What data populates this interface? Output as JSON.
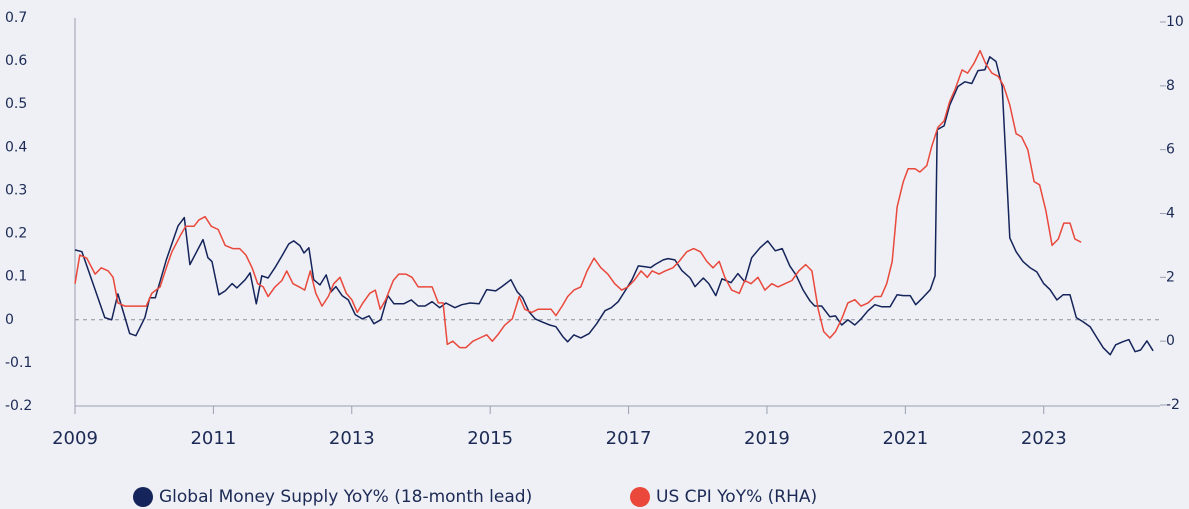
{
  "chart_data": {
    "type": "line",
    "xlim": [
      2009,
      2024.68
    ],
    "xticks": [
      2009,
      2011,
      2013,
      2015,
      2017,
      2019,
      2021,
      2023
    ],
    "ylim": [
      -0.2,
      0.7
    ],
    "yticks": [
      -0.2,
      -0.1,
      0,
      0.1,
      0.2,
      0.3,
      0.4,
      0.5,
      0.6,
      0.7
    ],
    "y2lim": [
      -2,
      10
    ],
    "y2ticks": [
      -2,
      0,
      2,
      4,
      6,
      8,
      10
    ],
    "zero_line": true,
    "legend": "bottom",
    "series": [
      {
        "name": "Global Money Supply YoY% (18-month lead)",
        "color": "#15245a",
        "axis": "y",
        "x": [
          2009.0,
          2009.1,
          2009.29,
          2009.43,
          2009.53,
          2009.62,
          2009.71,
          2009.79,
          2009.88,
          2010.01,
          2010.08,
          2010.16,
          2010.32,
          2010.49,
          2010.58,
          2010.66,
          2010.85,
          2010.92,
          2010.98,
          2011.08,
          2011.17,
          2011.27,
          2011.34,
          2011.46,
          2011.53,
          2011.62,
          2011.7,
          2011.79,
          2011.89,
          2011.99,
          2012.09,
          2012.16,
          2012.25,
          2012.31,
          2012.38,
          2012.45,
          2012.54,
          2012.63,
          2012.7,
          2012.77,
          2012.86,
          2012.95,
          2013.05,
          2013.15,
          2013.25,
          2013.32,
          2013.42,
          2013.52,
          2013.61,
          2013.75,
          2013.86,
          2013.96,
          2014.06,
          2014.16,
          2014.27,
          2014.36,
          2014.49,
          2014.59,
          2014.71,
          2014.84,
          2014.95,
          2015.08,
          2015.17,
          2015.3,
          2015.39,
          2015.47,
          2015.56,
          2015.65,
          2015.75,
          2015.86,
          2015.95,
          2016.05,
          2016.12,
          2016.21,
          2016.31,
          2016.43,
          2016.54,
          2016.66,
          2016.75,
          2016.85,
          2016.95,
          2017.05,
          2017.14,
          2017.24,
          2017.32,
          2017.38,
          2017.5,
          2017.57,
          2017.67,
          2017.77,
          2017.89,
          2017.96,
          2018.08,
          2018.16,
          2018.26,
          2018.35,
          2018.48,
          2018.58,
          2018.68,
          2018.78,
          2018.9,
          2019.01,
          2019.12,
          2019.22,
          2019.33,
          2019.42,
          2019.52,
          2019.62,
          2019.69,
          2019.79,
          2019.91,
          2019.99,
          2020.08,
          2020.17,
          2020.27,
          2020.36,
          2020.46,
          2020.56,
          2020.66,
          2020.78,
          2020.88,
          2020.97,
          2021.07,
          2021.15,
          2021.25,
          2021.36,
          2021.43,
          2021.46,
          2021.56,
          2021.64,
          2021.76,
          2021.86,
          2021.96,
          2022.05,
          2022.15,
          2022.22,
          2022.31,
          2022.4,
          2022.51,
          2022.6,
          2022.7,
          2022.8,
          2022.9,
          2023.0,
          2023.09,
          2023.19,
          2023.28,
          2023.38,
          2023.47,
          2023.57,
          2023.67,
          2023.77,
          2023.86,
          2023.96,
          2024.04,
          2024.14,
          2024.23,
          2024.32,
          2024.4,
          2024.49,
          2024.58
        ],
        "values": [
          0.162,
          0.158,
          0.07,
          0.005,
          0.0,
          0.06,
          0.012,
          -0.032,
          -0.037,
          0.005,
          0.051,
          0.051,
          0.139,
          0.218,
          0.237,
          0.128,
          0.186,
          0.144,
          0.135,
          0.058,
          0.067,
          0.084,
          0.074,
          0.093,
          0.109,
          0.037,
          0.102,
          0.097,
          0.121,
          0.148,
          0.176,
          0.183,
          0.172,
          0.155,
          0.167,
          0.093,
          0.081,
          0.104,
          0.065,
          0.077,
          0.056,
          0.046,
          0.012,
          0.002,
          0.009,
          -0.009,
          0.0,
          0.056,
          0.037,
          0.037,
          0.046,
          0.032,
          0.032,
          0.042,
          0.028,
          0.039,
          0.028,
          0.035,
          0.039,
          0.037,
          0.07,
          0.067,
          0.077,
          0.093,
          0.065,
          0.051,
          0.019,
          0.002,
          -0.005,
          -0.012,
          -0.016,
          -0.039,
          -0.051,
          -0.035,
          -0.042,
          -0.032,
          -0.009,
          0.021,
          0.028,
          0.042,
          0.067,
          0.093,
          0.125,
          0.123,
          0.121,
          0.128,
          0.139,
          0.142,
          0.139,
          0.114,
          0.097,
          0.077,
          0.097,
          0.084,
          0.056,
          0.095,
          0.086,
          0.107,
          0.088,
          0.144,
          0.167,
          0.183,
          0.16,
          0.165,
          0.125,
          0.104,
          0.07,
          0.044,
          0.032,
          0.032,
          0.007,
          0.009,
          -0.012,
          0.0,
          -0.012,
          0.002,
          0.021,
          0.035,
          0.03,
          0.03,
          0.058,
          0.056,
          0.056,
          0.035,
          0.051,
          0.07,
          0.102,
          0.441,
          0.45,
          0.497,
          0.541,
          0.552,
          0.548,
          0.578,
          0.58,
          0.61,
          0.599,
          0.541,
          0.19,
          0.158,
          0.135,
          0.121,
          0.111,
          0.084,
          0.07,
          0.046,
          0.058,
          0.058,
          0.005,
          -0.005,
          -0.016,
          -0.042,
          -0.065,
          -0.081,
          -0.058,
          -0.051,
          -0.046,
          -0.074,
          -0.07,
          -0.049,
          -0.072
        ]
      },
      {
        "name": "US CPI YoY% (RHA)",
        "color": "#e9483b",
        "axis": "y2",
        "x": [
          2009.0,
          2009.07,
          2009.17,
          2009.29,
          2009.38,
          2009.48,
          2009.55,
          2009.62,
          2009.72,
          2009.82,
          2009.94,
          2010.03,
          2010.11,
          2010.23,
          2010.32,
          2010.4,
          2010.52,
          2010.6,
          2010.72,
          2010.79,
          2010.88,
          2010.97,
          2011.07,
          2011.17,
          2011.28,
          2011.38,
          2011.47,
          2011.56,
          2011.64,
          2011.72,
          2011.79,
          2011.89,
          2011.99,
          2012.06,
          2012.15,
          2012.24,
          2012.32,
          2012.4,
          2012.48,
          2012.57,
          2012.66,
          2012.74,
          2012.83,
          2012.92,
          2013.0,
          2013.08,
          2013.16,
          2013.26,
          2013.34,
          2013.41,
          2013.49,
          2013.6,
          2013.68,
          2013.78,
          2013.87,
          2013.96,
          2014.06,
          2014.16,
          2014.25,
          2014.32,
          2014.38,
          2014.46,
          2014.56,
          2014.65,
          2014.75,
          2014.85,
          2014.95,
          2015.03,
          2015.11,
          2015.21,
          2015.32,
          2015.42,
          2015.5,
          2015.6,
          2015.69,
          2015.79,
          2015.88,
          2015.95,
          2016.04,
          2016.12,
          2016.21,
          2016.31,
          2016.4,
          2016.5,
          2016.6,
          2016.7,
          2016.8,
          2016.9,
          2016.99,
          2017.08,
          2017.18,
          2017.27,
          2017.34,
          2017.44,
          2017.53,
          2017.64,
          2017.73,
          2017.84,
          2017.94,
          2018.04,
          2018.13,
          2018.22,
          2018.31,
          2018.39,
          2018.49,
          2018.6,
          2018.68,
          2018.77,
          2018.87,
          2018.97,
          2019.07,
          2019.16,
          2019.26,
          2019.36,
          2019.46,
          2019.56,
          2019.65,
          2019.74,
          2019.82,
          2019.91,
          2019.99,
          2020.08,
          2020.17,
          2020.27,
          2020.36,
          2020.46,
          2020.56,
          2020.65,
          2020.73,
          2020.81,
          2020.88,
          2020.97,
          2021.04,
          2021.14,
          2021.21,
          2021.31,
          2021.38,
          2021.47,
          2021.56,
          2021.64,
          2021.72,
          2021.82,
          2021.9,
          2021.99,
          2022.08,
          2022.16,
          2022.25,
          2022.34,
          2022.42,
          2022.51,
          2022.6,
          2022.68,
          2022.77,
          2022.86,
          2022.94,
          2023.03,
          2023.12,
          2023.21,
          2023.29,
          2023.38,
          2023.45,
          2023.54
        ],
        "values": [
          1.8,
          2.7,
          2.6,
          2.1,
          2.3,
          2.2,
          2.0,
          1.2,
          1.1,
          1.1,
          1.1,
          1.1,
          1.5,
          1.7,
          2.3,
          2.8,
          3.3,
          3.6,
          3.6,
          3.8,
          3.9,
          3.6,
          3.5,
          3.0,
          2.9,
          2.9,
          2.7,
          2.3,
          1.8,
          1.7,
          1.4,
          1.7,
          1.9,
          2.2,
          1.8,
          1.7,
          1.6,
          2.2,
          1.5,
          1.1,
          1.4,
          1.8,
          2.0,
          1.5,
          1.3,
          0.9,
          1.2,
          1.5,
          1.6,
          1.0,
          1.3,
          1.9,
          2.1,
          2.1,
          2.0,
          1.7,
          1.7,
          1.7,
          1.2,
          1.2,
          -0.1,
          0.0,
          -0.2,
          -0.2,
          0.0,
          0.1,
          0.2,
          0.0,
          0.2,
          0.5,
          0.7,
          1.4,
          1.0,
          0.9,
          1.0,
          1.0,
          1.0,
          0.8,
          1.1,
          1.4,
          1.6,
          1.7,
          2.2,
          2.6,
          2.3,
          2.1,
          1.8,
          1.6,
          1.7,
          1.9,
          2.2,
          2.0,
          2.2,
          2.1,
          2.2,
          2.3,
          2.5,
          2.8,
          2.9,
          2.8,
          2.5,
          2.3,
          2.5,
          2.0,
          1.6,
          1.5,
          1.9,
          1.8,
          2.0,
          1.6,
          1.8,
          1.7,
          1.8,
          1.9,
          2.2,
          2.4,
          2.2,
          1.0,
          0.3,
          0.1,
          0.3,
          0.7,
          1.2,
          1.3,
          1.1,
          1.2,
          1.4,
          1.4,
          1.8,
          2.5,
          4.2,
          5.0,
          5.4,
          5.4,
          5.3,
          5.5,
          6.1,
          6.7,
          6.9,
          7.5,
          7.9,
          8.5,
          8.4,
          8.7,
          9.1,
          8.7,
          8.4,
          8.3,
          8.0,
          7.4,
          6.5,
          6.4,
          6.0,
          5.0,
          4.9,
          4.1,
          3.0,
          3.2,
          3.7,
          3.7,
          3.2,
          3.1
        ]
      }
    ]
  }
}
